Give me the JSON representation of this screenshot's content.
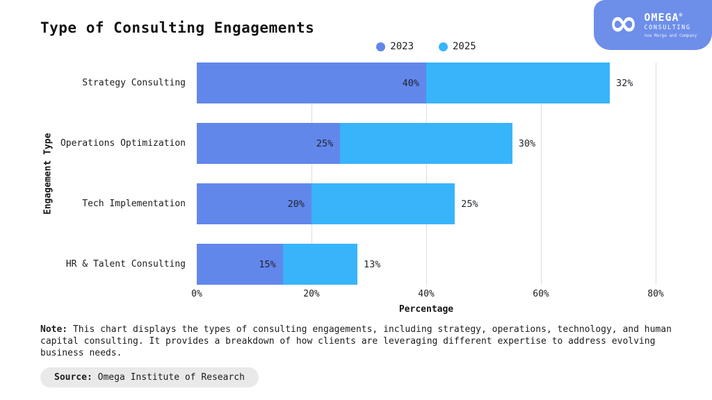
{
  "header": {
    "title": "Type of Consulting Engagements"
  },
  "logo": {
    "infinity_icon": "∞",
    "brand": "OMEGA",
    "reg": "®",
    "subtitle": "CONSULTING",
    "tagline": "now Merga and Company",
    "bg_color": "#6d8ee9"
  },
  "chart_data": {
    "type": "bar",
    "orientation": "horizontal",
    "stacked": true,
    "title": "Type of Consulting Engagements",
    "categories": [
      "Strategy Consulting",
      "Operations Optimization",
      "Tech Implementation",
      "HR & Talent Consulting"
    ],
    "series": [
      {
        "name": "2023",
        "color": "#6287eb",
        "values": [
          40,
          25,
          20,
          15
        ]
      },
      {
        "name": "2025",
        "color": "#38b4fb",
        "values": [
          32,
          30,
          25,
          13
        ]
      }
    ],
    "value_suffix": "%",
    "xlabel": "Percentage",
    "ylabel": "Engagement Type",
    "xlim": [
      0,
      80
    ],
    "xticks": [
      0,
      20,
      40,
      60,
      80
    ],
    "xtick_labels": [
      "0%",
      "20%",
      "40%",
      "60%",
      "80%"
    ],
    "grid": "vertical",
    "gridline_color": "#dcdcdc",
    "legend_position": "top"
  },
  "note": {
    "label": "Note:",
    "text": " This chart displays the types of consulting engagements, including strategy, operations, technology, and human capital consulting. It provides a breakdown of how clients are leveraging different expertise to address evolving business needs."
  },
  "source": {
    "label": "Source:",
    "text": " Omega Institute of Research",
    "pill_bg": "#e9e9e9"
  }
}
